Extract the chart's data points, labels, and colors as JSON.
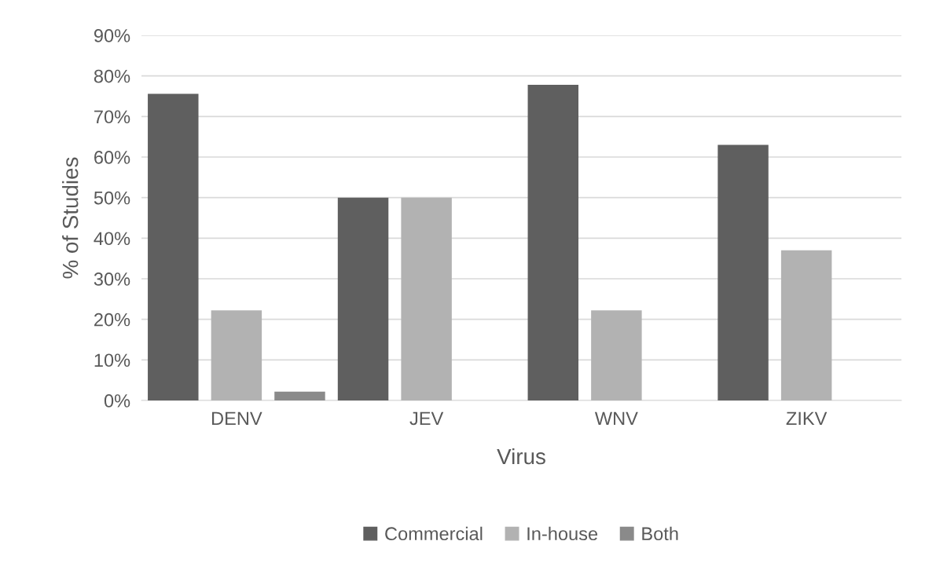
{
  "chart_data": {
    "type": "bar",
    "xlabel": "Virus",
    "ylabel": "% of Studies",
    "categories": [
      "DENV",
      "JEV",
      "WNV",
      "ZIKV"
    ],
    "series": [
      {
        "name": "Commercial",
        "color": "#5f5f5f",
        "values": [
          75.6,
          50,
          77.8,
          63
        ]
      },
      {
        "name": "In-house",
        "color": "#b2b2b2",
        "values": [
          22.2,
          50,
          22.2,
          37
        ]
      },
      {
        "name": "Both",
        "color": "#8a8a8a",
        "values": [
          2.2,
          0,
          0,
          0
        ]
      }
    ],
    "ylim": [
      0,
      90
    ],
    "yticks": [
      {
        "value": 0,
        "label": "0%"
      },
      {
        "value": 10,
        "label": "10%"
      },
      {
        "value": 20,
        "label": "20%"
      },
      {
        "value": 30,
        "label": "30%"
      },
      {
        "value": 40,
        "label": "40%"
      },
      {
        "value": 50,
        "label": "50%"
      },
      {
        "value": 60,
        "label": "60%"
      },
      {
        "value": 70,
        "label": "70%"
      },
      {
        "value": 80,
        "label": "80%"
      },
      {
        "value": 90,
        "label": "90%"
      }
    ],
    "grid": "y",
    "legend": "bottom"
  }
}
